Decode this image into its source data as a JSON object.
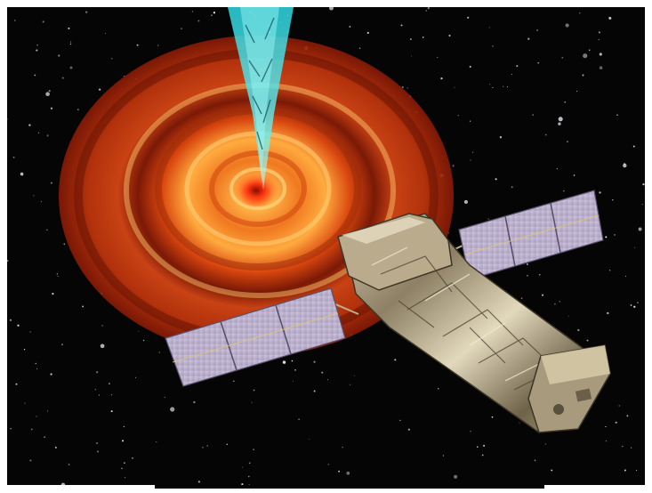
{
  "image": {
    "subject": "artist-impression-space-telescope-accretion-disk",
    "elements": [
      "starfield",
      "accretion-disk",
      "relativistic-jet",
      "space-telescope",
      "solar-panel-left",
      "solar-panel-right"
    ]
  },
  "colors": {
    "space": "#050505",
    "disk_outer": "#8e1b06",
    "disk_mid": "#d9460f",
    "disk_inner": "#ffb64a",
    "jet": "#47e6ea",
    "panel": "#c8bed8",
    "panel_grid": "#7d7090",
    "telescope_foil": "#b8aa8a",
    "telescope_shadow": "#4b4232"
  }
}
